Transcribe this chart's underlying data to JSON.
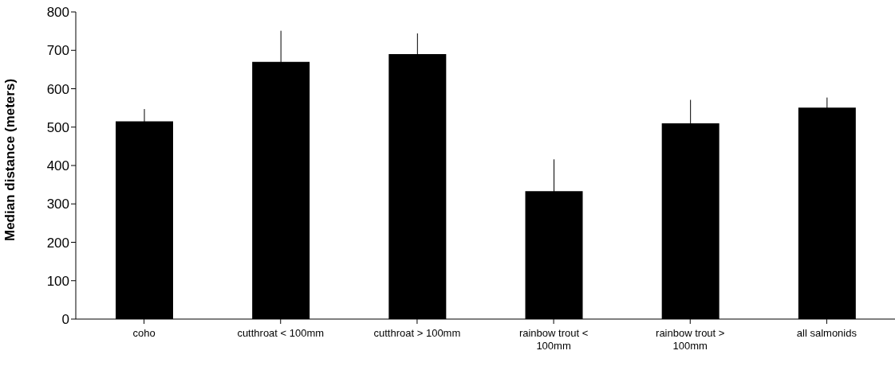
{
  "chart_data": {
    "type": "bar",
    "ylabel": "Median distance (meters)",
    "categories": [
      "coho",
      "cutthroat < 100mm",
      "cutthroat > 100mm",
      "rainbow trout < 100mm",
      "rainbow trout > 100mm",
      "all salmonids"
    ],
    "values": [
      515,
      670,
      690,
      333,
      510,
      551
    ],
    "errors": [
      32,
      81,
      54,
      83,
      61,
      26
    ],
    "color": "#000000",
    "ylim": [
      0,
      800
    ],
    "yticks": [
      0,
      100,
      200,
      300,
      400,
      500,
      600,
      700,
      800
    ],
    "grid": false,
    "legend": false
  }
}
